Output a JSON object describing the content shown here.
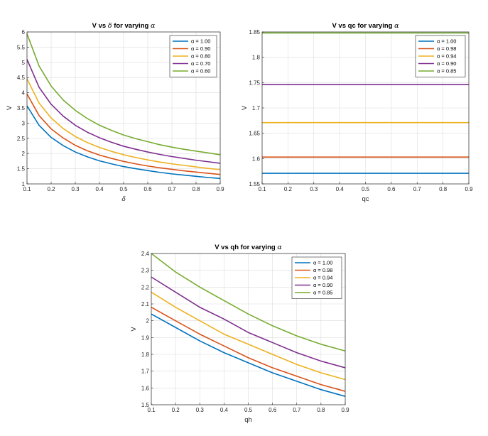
{
  "chart_data": [
    {
      "type": "line",
      "title": "V vs δ for varying α",
      "title_prefix": "V vs ",
      "title_mid": "δ",
      "title_suffix": " for varying ",
      "title_greek": "α",
      "xlabel": "δ",
      "ylabel": "V",
      "xlim": [
        0.1,
        0.9
      ],
      "ylim": [
        1,
        6
      ],
      "xticks": [
        "0.1",
        "0.2",
        "0.3",
        "0.4",
        "0.5",
        "0.6",
        "0.7",
        "0.8",
        "0.9"
      ],
      "yticks": [
        "1",
        "1.5",
        "2",
        "2.5",
        "3",
        "3.5",
        "4",
        "4.5",
        "5",
        "5.5",
        "6"
      ],
      "grid": true,
      "legend_position": "top-right",
      "x": [
        0.1,
        0.15,
        0.2,
        0.25,
        0.3,
        0.35,
        0.4,
        0.45,
        0.5,
        0.55,
        0.6,
        0.65,
        0.7,
        0.75,
        0.8,
        0.85,
        0.9
      ],
      "series": [
        {
          "name": "α = 1.00",
          "color": "#0072BD",
          "values": [
            3.57,
            2.93,
            2.53,
            2.26,
            2.05,
            1.89,
            1.76,
            1.66,
            1.57,
            1.5,
            1.44,
            1.38,
            1.33,
            1.29,
            1.25,
            1.21,
            1.18
          ]
        },
        {
          "name": "α = 0.90",
          "color": "#D95319",
          "values": [
            3.96,
            3.25,
            2.81,
            2.51,
            2.27,
            2.09,
            1.95,
            1.84,
            1.74,
            1.66,
            1.59,
            1.53,
            1.48,
            1.43,
            1.39,
            1.35,
            1.31
          ]
        },
        {
          "name": "α = 0.80",
          "color": "#EDB120",
          "values": [
            4.46,
            3.66,
            3.17,
            2.82,
            2.56,
            2.36,
            2.2,
            2.07,
            1.96,
            1.87,
            1.79,
            1.72,
            1.66,
            1.61,
            1.56,
            1.51,
            1.47
          ]
        },
        {
          "name": "α = 0.70",
          "color": "#7E2F8E",
          "values": [
            5.1,
            4.18,
            3.62,
            3.23,
            2.93,
            2.7,
            2.52,
            2.37,
            2.24,
            2.14,
            2.05,
            1.97,
            1.9,
            1.84,
            1.78,
            1.73,
            1.68
          ]
        },
        {
          "name": "α = 0.60",
          "color": "#77AC30",
          "values": [
            5.94,
            4.88,
            4.22,
            3.76,
            3.42,
            3.15,
            2.93,
            2.76,
            2.61,
            2.49,
            2.39,
            2.29,
            2.21,
            2.14,
            2.08,
            2.02,
            1.96
          ]
        }
      ]
    },
    {
      "type": "line",
      "title": "V vs qc for varying α",
      "title_prefix": "V vs qc for varying ",
      "title_greek": "α",
      "xlabel": "qc",
      "ylabel": "V",
      "xlim": [
        0.1,
        0.9
      ],
      "ylim": [
        1.55,
        1.85
      ],
      "xticks": [
        "0.1",
        "0.2",
        "0.3",
        "0.4",
        "0.5",
        "0.6",
        "0.7",
        "0.8",
        "0.9"
      ],
      "yticks": [
        "1.55",
        "1.6",
        "1.65",
        "1.7",
        "1.75",
        "1.8",
        "1.85"
      ],
      "grid": true,
      "legend_position": "top-right",
      "x": [
        0.1,
        0.9
      ],
      "series": [
        {
          "name": "α = 1.00",
          "color": "#0072BD",
          "values": [
            1.571,
            1.571
          ]
        },
        {
          "name": "α = 0.98",
          "color": "#D95319",
          "values": [
            1.603,
            1.603
          ]
        },
        {
          "name": "α = 0.94",
          "color": "#EDB120",
          "values": [
            1.671,
            1.671
          ]
        },
        {
          "name": "α = 0.90",
          "color": "#7E2F8E",
          "values": [
            1.746,
            1.746
          ]
        },
        {
          "name": "α = 0.85",
          "color": "#77AC30",
          "values": [
            1.848,
            1.848
          ]
        }
      ]
    },
    {
      "type": "line",
      "title": "V vs qh for varying α",
      "title_prefix": "V vs qh for varying ",
      "title_greek": "α",
      "xlabel": "qh",
      "ylabel": "V",
      "xlim": [
        0.1,
        0.9
      ],
      "ylim": [
        1.5,
        2.4
      ],
      "xticks": [
        "0.1",
        "0.2",
        "0.3",
        "0.4",
        "0.5",
        "0.6",
        "0.7",
        "0.8",
        "0.9"
      ],
      "yticks": [
        "1.5",
        "1.6",
        "1.7",
        "1.8",
        "1.9",
        "2",
        "2.1",
        "2.2",
        "2.3",
        "2.4"
      ],
      "grid": true,
      "legend_position": "top-right",
      "x": [
        0.1,
        0.2,
        0.3,
        0.4,
        0.5,
        0.6,
        0.7,
        0.8,
        0.9
      ],
      "series": [
        {
          "name": "α = 1.00",
          "color": "#0072BD",
          "values": [
            2.04,
            1.96,
            1.88,
            1.81,
            1.75,
            1.69,
            1.64,
            1.59,
            1.55
          ]
        },
        {
          "name": "α = 0.98",
          "color": "#D95319",
          "values": [
            2.08,
            2.0,
            1.92,
            1.85,
            1.78,
            1.72,
            1.67,
            1.62,
            1.58
          ]
        },
        {
          "name": "α = 0.94",
          "color": "#EDB120",
          "values": [
            2.17,
            2.08,
            2.0,
            1.92,
            1.86,
            1.8,
            1.74,
            1.69,
            1.65
          ]
        },
        {
          "name": "α = 0.90",
          "color": "#7E2F8E",
          "values": [
            2.26,
            2.17,
            2.08,
            2.01,
            1.93,
            1.87,
            1.81,
            1.76,
            1.72
          ]
        },
        {
          "name": "α = 0.85",
          "color": "#77AC30",
          "values": [
            2.4,
            2.29,
            2.2,
            2.12,
            2.04,
            1.97,
            1.91,
            1.86,
            1.82
          ]
        }
      ]
    }
  ]
}
